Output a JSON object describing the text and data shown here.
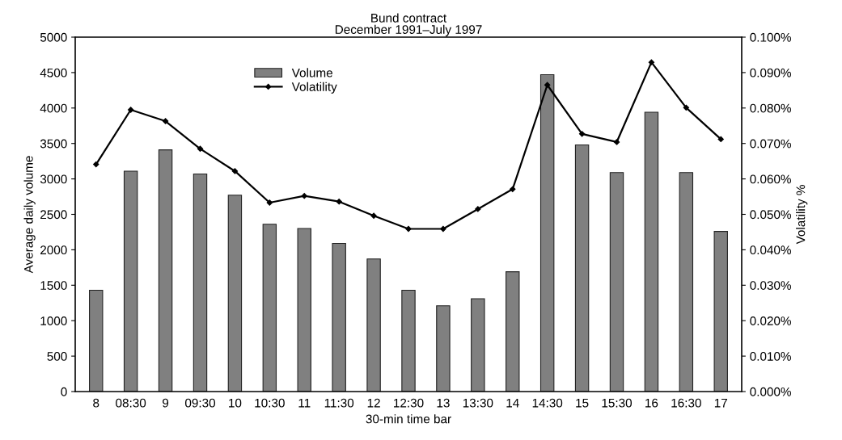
{
  "chart_data": {
    "type": "bar",
    "title": "Bund contract\nDecember 1991–July 1997",
    "xlabel": "30-min time bar",
    "ylabel": "Average daily volume",
    "y2label": "Volatility %",
    "categories": [
      "8",
      "08:30",
      "9",
      "09:30",
      "10",
      "10:30",
      "11",
      "11:30",
      "12",
      "12:30",
      "13",
      "13:30",
      "14",
      "14:30",
      "15",
      "15:30",
      "16",
      "16:30",
      "17"
    ],
    "series": [
      {
        "name": "Volume",
        "color": "#808080",
        "values": [
          1430,
          3110,
          3410,
          3070,
          2770,
          2360,
          2300,
          2090,
          1870,
          1430,
          1210,
          1310,
          1690,
          4470,
          3480,
          3090,
          3940,
          3090,
          2260
        ]
      },
      {
        "name": "Volatility",
        "type": "line",
        "axis": "y2",
        "color": "#000000",
        "marker": "diamond",
        "values": [
          0.0641,
          0.0795,
          0.0763,
          0.0685,
          0.0622,
          0.0533,
          0.0552,
          0.0536,
          0.0496,
          0.0459,
          0.0459,
          0.0515,
          0.0571,
          0.0865,
          0.0727,
          0.0704,
          0.0929,
          0.0801,
          0.0712
        ]
      }
    ],
    "ylim": [
      0,
      5000
    ],
    "yticks": [
      0,
      500,
      1000,
      1500,
      2000,
      2500,
      3000,
      3500,
      4000,
      4500,
      5000
    ],
    "y2lim": [
      0,
      0.1
    ],
    "y2ticks": [
      {
        "value": 0,
        "label": "0.000%"
      },
      {
        "value": 0.01,
        "label": "0.010%"
      },
      {
        "value": 0.02,
        "label": "0.020%"
      },
      {
        "value": 0.03,
        "label": "0.030%"
      },
      {
        "value": 0.04,
        "label": "0.040%"
      },
      {
        "value": 0.05,
        "label": "0.050%"
      },
      {
        "value": 0.06,
        "label": "0.060%"
      },
      {
        "value": 0.07,
        "label": "0.070%"
      },
      {
        "value": 0.08,
        "label": "0.080%"
      },
      {
        "value": 0.09,
        "label": "0.090%"
      },
      {
        "value": 0.1,
        "label": "0.100%"
      }
    ],
    "grid": false,
    "legend": "top"
  }
}
